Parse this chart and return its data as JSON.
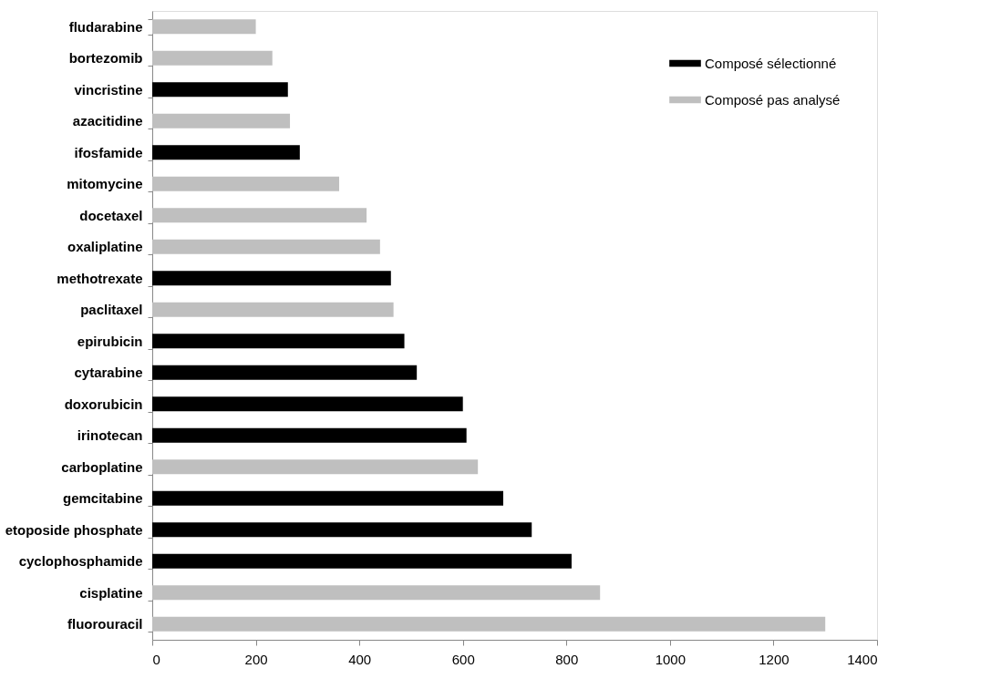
{
  "chart_data": {
    "type": "bar",
    "orientation": "horizontal",
    "categories": [
      "fludarabine",
      "bortezomib",
      "vincristine",
      "azacitidine",
      "ifosfamide",
      "mitomycine",
      "docetaxel",
      "oxaliplatine",
      "methotrexate",
      "paclitaxel",
      "epirubicin",
      "cytarabine",
      "doxorubicin",
      "irinotecan",
      "carboplatine",
      "gemcitabine",
      "etoposide phosphate",
      "cyclophosphamide",
      "cisplatine",
      "fluorouracil"
    ],
    "series": [
      {
        "name": "Composé sélectionné",
        "color": "#000000",
        "values": [
          null,
          null,
          262,
          null,
          285,
          null,
          null,
          null,
          461,
          null,
          487,
          511,
          600,
          607,
          null,
          678,
          733,
          810,
          null,
          null
        ]
      },
      {
        "name": "Composé pas analysé",
        "color": "#bfbfbf",
        "values": [
          200,
          232,
          null,
          266,
          null,
          361,
          414,
          440,
          null,
          466,
          null,
          null,
          null,
          null,
          629,
          null,
          null,
          null,
          865,
          1300
        ]
      }
    ],
    "xlim": [
      0,
      1400
    ],
    "xticks": [
      0,
      200,
      400,
      600,
      800,
      1000,
      1200,
      1400
    ],
    "grid": false,
    "legend": "top right"
  }
}
